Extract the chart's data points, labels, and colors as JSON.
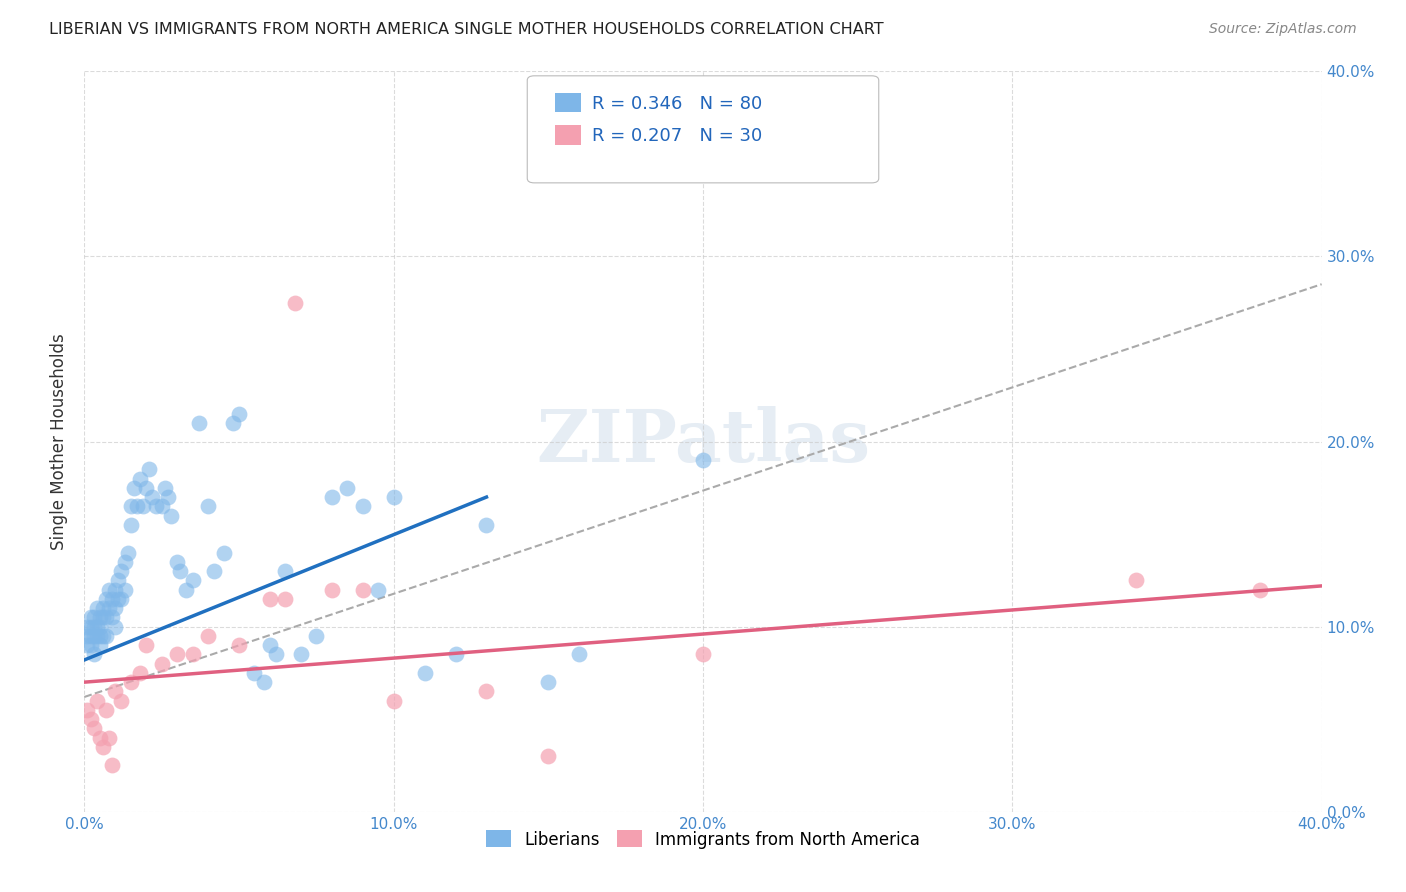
{
  "title": "LIBERIAN VS IMMIGRANTS FROM NORTH AMERICA SINGLE MOTHER HOUSEHOLDS CORRELATION CHART",
  "source": "Source: ZipAtlas.com",
  "ylabel": "Single Mother Households",
  "xlim": [
    0.0,
    0.4
  ],
  "ylim": [
    0.0,
    0.4
  ],
  "x_ticks": [
    0.0,
    0.1,
    0.2,
    0.3,
    0.4
  ],
  "y_ticks": [
    0.0,
    0.1,
    0.2,
    0.3,
    0.4
  ],
  "x_tick_labels": [
    "0.0%",
    "10.0%",
    "20.0%",
    "30.0%",
    "40.0%"
  ],
  "y_tick_labels_right": [
    "0.0%",
    "10.0%",
    "20.0%",
    "30.0%",
    "40.0%"
  ],
  "liberian_color": "#7EB6E8",
  "immigrant_color": "#F4A0B0",
  "liberian_line_color": "#2070C0",
  "immigrant_line_color": "#E06080",
  "dashed_line_color": "#AAAAAA",
  "R_liberian": 0.346,
  "N_liberian": 80,
  "R_immigrant": 0.207,
  "N_immigrant": 30,
  "legend_label_liberian": "Liberians",
  "legend_label_immigrant": "Immigrants from North America",
  "watermark": "ZIPatlas",
  "liberian_x": [
    0.001,
    0.001,
    0.001,
    0.002,
    0.002,
    0.002,
    0.002,
    0.003,
    0.003,
    0.003,
    0.003,
    0.004,
    0.004,
    0.004,
    0.005,
    0.005,
    0.005,
    0.005,
    0.006,
    0.006,
    0.006,
    0.007,
    0.007,
    0.007,
    0.008,
    0.008,
    0.009,
    0.009,
    0.01,
    0.01,
    0.01,
    0.011,
    0.011,
    0.012,
    0.012,
    0.013,
    0.013,
    0.014,
    0.015,
    0.015,
    0.016,
    0.017,
    0.018,
    0.019,
    0.02,
    0.021,
    0.022,
    0.023,
    0.025,
    0.026,
    0.027,
    0.028,
    0.03,
    0.031,
    0.033,
    0.035,
    0.037,
    0.04,
    0.042,
    0.045,
    0.048,
    0.05,
    0.055,
    0.058,
    0.06,
    0.062,
    0.065,
    0.07,
    0.075,
    0.08,
    0.085,
    0.09,
    0.095,
    0.1,
    0.11,
    0.12,
    0.13,
    0.15,
    0.16,
    0.2
  ],
  "liberian_y": [
    0.1,
    0.095,
    0.09,
    0.105,
    0.1,
    0.095,
    0.09,
    0.105,
    0.1,
    0.095,
    0.085,
    0.11,
    0.1,
    0.095,
    0.105,
    0.1,
    0.095,
    0.09,
    0.11,
    0.105,
    0.095,
    0.115,
    0.105,
    0.095,
    0.12,
    0.11,
    0.115,
    0.105,
    0.12,
    0.11,
    0.1,
    0.125,
    0.115,
    0.13,
    0.115,
    0.135,
    0.12,
    0.14,
    0.165,
    0.155,
    0.175,
    0.165,
    0.18,
    0.165,
    0.175,
    0.185,
    0.17,
    0.165,
    0.165,
    0.175,
    0.17,
    0.16,
    0.135,
    0.13,
    0.12,
    0.125,
    0.21,
    0.165,
    0.13,
    0.14,
    0.21,
    0.215,
    0.075,
    0.07,
    0.09,
    0.085,
    0.13,
    0.085,
    0.095,
    0.17,
    0.175,
    0.165,
    0.12,
    0.17,
    0.075,
    0.085,
    0.155,
    0.07,
    0.085,
    0.19
  ],
  "immigrant_x": [
    0.001,
    0.002,
    0.003,
    0.004,
    0.005,
    0.006,
    0.007,
    0.008,
    0.009,
    0.01,
    0.012,
    0.015,
    0.018,
    0.02,
    0.025,
    0.03,
    0.035,
    0.04,
    0.05,
    0.06,
    0.065,
    0.068,
    0.08,
    0.09,
    0.1,
    0.13,
    0.15,
    0.2,
    0.34,
    0.38
  ],
  "immigrant_y": [
    0.055,
    0.05,
    0.045,
    0.06,
    0.04,
    0.035,
    0.055,
    0.04,
    0.025,
    0.065,
    0.06,
    0.07,
    0.075,
    0.09,
    0.08,
    0.085,
    0.085,
    0.095,
    0.09,
    0.115,
    0.115,
    0.275,
    0.12,
    0.12,
    0.06,
    0.065,
    0.03,
    0.085,
    0.125,
    0.12
  ],
  "lib_line_x0": 0.0,
  "lib_line_y0": 0.082,
  "lib_line_x1": 0.13,
  "lib_line_y1": 0.17,
  "imm_line_x0": 0.0,
  "imm_line_y0": 0.07,
  "imm_line_x1": 0.4,
  "imm_line_y1": 0.122,
  "dash_line_x0": 0.0,
  "dash_line_y0": 0.062,
  "dash_line_x1": 0.4,
  "dash_line_y1": 0.285
}
